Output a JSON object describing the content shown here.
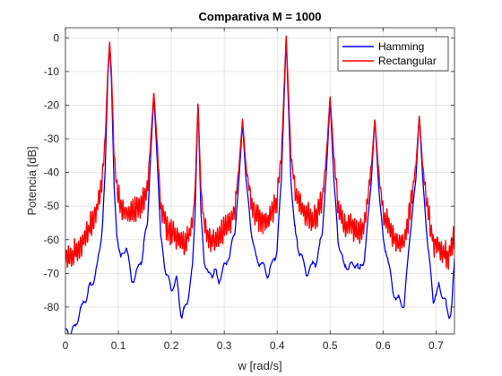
{
  "chart_data": {
    "type": "line",
    "title": "Comparativa M = 1000",
    "xlabel": "w [rad/s]",
    "ylabel": "Potencia [dB]",
    "xlim": [
      0,
      0.735
    ],
    "ylim": [
      -88,
      3
    ],
    "xticks": [
      0,
      0.1,
      0.2,
      0.3,
      0.4,
      0.5,
      0.6,
      0.7
    ],
    "xtick_labels": [
      "0",
      "0.1",
      "0.2",
      "0.3",
      "0.4",
      "0.5",
      "0.6",
      "0.7"
    ],
    "yticks": [
      0,
      -10,
      -20,
      -30,
      -40,
      -50,
      -60,
      -70,
      -80
    ],
    "ytick_labels": [
      "0",
      "-10",
      "-20",
      "-30",
      "-40",
      "-50",
      "-60",
      "-70",
      "-80"
    ],
    "grid": true,
    "legend_position": "top-right",
    "peaks": [
      {
        "w": 0.0835,
        "db": -1
      },
      {
        "w": 0.167,
        "db": -16
      },
      {
        "w": 0.2505,
        "db": -19
      },
      {
        "w": 0.3345,
        "db": -24
      },
      {
        "w": 0.417,
        "db": 1
      },
      {
        "w": 0.5,
        "db": -17
      },
      {
        "w": 0.5845,
        "db": -24
      },
      {
        "w": 0.6685,
        "db": -23
      }
    ],
    "series": [
      {
        "name": "Hamming",
        "color": "#0000ff",
        "x": [
          0,
          0.01,
          0.02,
          0.03,
          0.04,
          0.05,
          0.06,
          0.065,
          0.07,
          0.075,
          0.08,
          0.0835,
          0.087,
          0.092,
          0.097,
          0.105,
          0.115,
          0.125,
          0.135,
          0.145,
          0.155,
          0.16,
          0.167,
          0.174,
          0.18,
          0.19,
          0.2,
          0.21,
          0.22,
          0.23,
          0.24,
          0.245,
          0.2505,
          0.256,
          0.262,
          0.27,
          0.28,
          0.29,
          0.3,
          0.31,
          0.32,
          0.328,
          0.3345,
          0.341,
          0.35,
          0.36,
          0.37,
          0.38,
          0.39,
          0.4,
          0.408,
          0.417,
          0.426,
          0.435,
          0.445,
          0.455,
          0.465,
          0.475,
          0.485,
          0.493,
          0.5,
          0.507,
          0.515,
          0.525,
          0.535,
          0.545,
          0.555,
          0.565,
          0.578,
          0.5845,
          0.591,
          0.6,
          0.61,
          0.62,
          0.63,
          0.64,
          0.65,
          0.662,
          0.6685,
          0.675,
          0.685,
          0.695,
          0.705,
          0.715,
          0.725,
          0.73,
          0.735
        ],
        "y": [
          -88,
          -87,
          -85,
          -80,
          -77,
          -73,
          -68,
          -63,
          -55,
          -40,
          -12,
          -2,
          -13,
          -45,
          -58,
          -66,
          -62,
          -72,
          -70,
          -65,
          -55,
          -38,
          -17,
          -38,
          -60,
          -70,
          -75,
          -72,
          -83,
          -78,
          -68,
          -52,
          -19,
          -52,
          -66,
          -71,
          -69,
          -72,
          -68,
          -65,
          -58,
          -42,
          -25,
          -42,
          -56,
          -66,
          -67,
          -70,
          -68,
          -62,
          -42,
          0,
          -42,
          -60,
          -64,
          -70,
          -68,
          -66,
          -58,
          -40,
          -18,
          -42,
          -60,
          -67,
          -69,
          -67,
          -69,
          -66,
          -42,
          -24,
          -42,
          -60,
          -66,
          -76,
          -78,
          -80,
          -60,
          -42,
          -23,
          -42,
          -62,
          -78,
          -74,
          -78,
          -82,
          -80,
          -66
        ]
      },
      {
        "name": "Rectangular",
        "color": "#ff0000",
        "x": [
          0,
          0.01,
          0.02,
          0.03,
          0.04,
          0.05,
          0.06,
          0.065,
          0.07,
          0.075,
          0.08,
          0.0835,
          0.087,
          0.092,
          0.097,
          0.105,
          0.115,
          0.125,
          0.135,
          0.145,
          0.155,
          0.16,
          0.167,
          0.174,
          0.18,
          0.19,
          0.2,
          0.21,
          0.22,
          0.23,
          0.24,
          0.245,
          0.2505,
          0.256,
          0.262,
          0.27,
          0.28,
          0.29,
          0.3,
          0.31,
          0.32,
          0.328,
          0.3345,
          0.341,
          0.35,
          0.36,
          0.37,
          0.38,
          0.39,
          0.4,
          0.408,
          0.417,
          0.426,
          0.435,
          0.445,
          0.455,
          0.465,
          0.475,
          0.485,
          0.493,
          0.5,
          0.507,
          0.515,
          0.525,
          0.535,
          0.545,
          0.555,
          0.565,
          0.578,
          0.5845,
          0.591,
          0.6,
          0.61,
          0.62,
          0.63,
          0.64,
          0.65,
          0.662,
          0.6685,
          0.675,
          0.685,
          0.695,
          0.705,
          0.715,
          0.725,
          0.73,
          0.735
        ],
        "y": [
          -65,
          -65,
          -63,
          -61,
          -58,
          -55,
          -50,
          -47,
          -40,
          -30,
          -10,
          -1,
          -10,
          -35,
          -45,
          -50,
          -52,
          -52,
          -51,
          -49,
          -45,
          -33,
          -16,
          -33,
          -50,
          -56,
          -58,
          -59,
          -62,
          -60,
          -55,
          -45,
          -19,
          -45,
          -55,
          -60,
          -60,
          -59,
          -57,
          -55,
          -51,
          -38,
          -24,
          -38,
          -48,
          -53,
          -54,
          -55,
          -52,
          -48,
          -35,
          1,
          -35,
          -47,
          -50,
          -52,
          -54,
          -53,
          -48,
          -35,
          -17,
          -35,
          -50,
          -55,
          -56,
          -57,
          -58,
          -56,
          -38,
          -24,
          -38,
          -52,
          -55,
          -60,
          -61,
          -61,
          -52,
          -38,
          -23,
          -38,
          -52,
          -61,
          -62,
          -64,
          -65,
          -62,
          -59
        ]
      }
    ]
  }
}
